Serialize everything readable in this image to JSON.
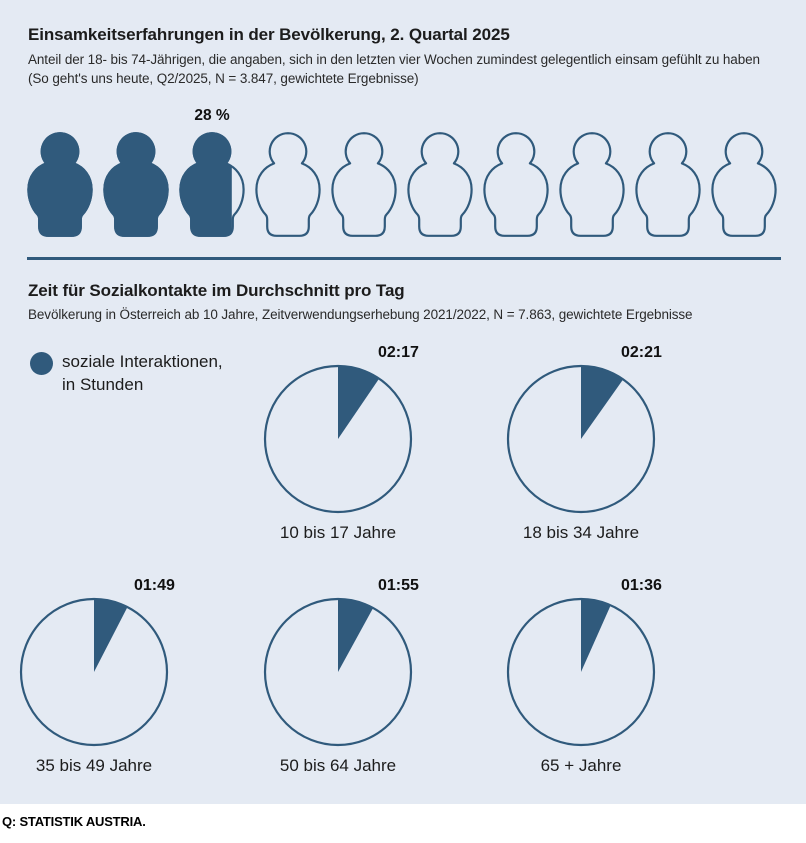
{
  "colors": {
    "accent": "#305a7c",
    "background": "#e4eaf3",
    "text": "#1f1f1f"
  },
  "section_loneliness": {
    "title": "Einsamkeitserfahrungen in der Bevölkerung, 2. Quartal 2025",
    "subtitle_line1": "Anteil der 18- bis 74-Jährigen, die angaben, sich in den letzten vier Wochen zumindest gelegentlich einsam gefühlt zu haben",
    "subtitle_line2": "(So geht's uns heute, Q2/2025, N = 3.847, gewichtete Ergebnisse)",
    "percent_label": "28 %"
  },
  "section_social": {
    "title": "Zeit für Sozialkontakte im Durchschnitt pro Tag",
    "subtitle": "Bevölkerung in Österreich ab 10 Jahre, Zeitverwendungserhebung 2021/2022, N = 7.863, gewichtete Ergebnisse",
    "legend_line1": "soziale Interaktionen,",
    "legend_line2": "in Stunden"
  },
  "chart_data": [
    {
      "type": "pictogram",
      "title": "Einsamkeitserfahrungen in der Bevölkerung, 2. Quartal 2025",
      "value_percent": 28,
      "value_label": "28 %",
      "total_icons": 10,
      "filled_icons": 2.8,
      "note": "each person icon = 10% of 18-74 year olds; 28% felt lonely at least occasionally in the last four weeks"
    },
    {
      "type": "pie",
      "title": "Zeit für Sozialkontakte im Durchschnitt pro Tag",
      "legend": "soziale Interaktionen, in Stunden",
      "unit": "hh:mm of a 24-hour day",
      "categories": [
        "10 bis 17 Jahre",
        "18 bis 34 Jahre",
        "35 bis 49 Jahre",
        "50 bis 64 Jahre",
        "65 + Jahre"
      ],
      "values": [
        "02:17",
        "02:21",
        "01:49",
        "01:55",
        "01:36"
      ],
      "values_minutes": [
        137,
        141,
        109,
        115,
        96
      ],
      "layout": "wedge starts at 12 o'clock, clockwise; five pies in 2 rows"
    }
  ],
  "footer": {
    "source": "Q: STATISTIK AUSTRIA."
  }
}
